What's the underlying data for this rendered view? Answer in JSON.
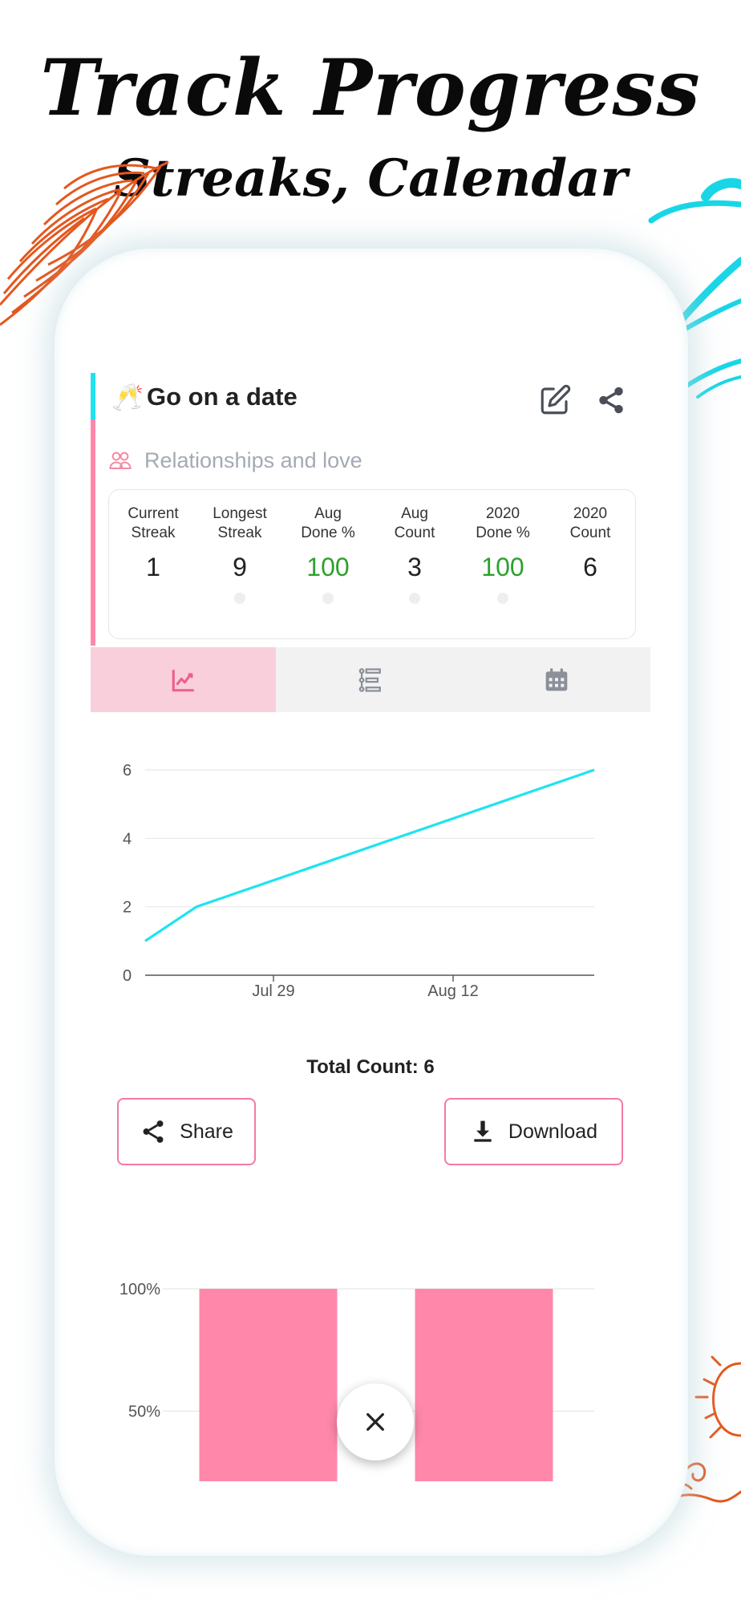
{
  "headline": {
    "title": "Track Progress",
    "subtitle": "Streaks, Calendar"
  },
  "habit": {
    "emoji": "🥂",
    "title": "Go on a date",
    "category": "Relationships and love",
    "accent_colors": {
      "top": "#1fe3f0",
      "bottom": "#ff88aa"
    }
  },
  "actions": {
    "edit_icon": "pencil-square-icon",
    "share_icon": "share-nodes-icon"
  },
  "stats": [
    {
      "line1": "Current",
      "line2": "Streak",
      "value": "1",
      "value_color": "default",
      "mini_icon": "bulb-icon"
    },
    {
      "line1": "Longest",
      "line2": "Streak",
      "value": "9",
      "value_color": "default",
      "mini_icon": "trophy-icon"
    },
    {
      "line1": "Aug",
      "line2": "Done %",
      "value": "100",
      "value_color": "green",
      "mini_icon": "badge-icon"
    },
    {
      "line1": "Aug",
      "line2": "Count",
      "value": "3",
      "value_color": "default",
      "mini_icon": "cloud-icon"
    },
    {
      "line1": "2020",
      "line2": "Done %",
      "value": "100",
      "value_color": "green",
      "mini_icon": "cup-icon"
    },
    {
      "line1": "2020",
      "line2": "Count",
      "value": "6",
      "value_color": "default",
      "mini_icon": "none"
    }
  ],
  "tabs": [
    {
      "icon": "line-chart-icon",
      "active": true
    },
    {
      "icon": "timeline-list-icon",
      "active": false
    },
    {
      "icon": "calendar-icon",
      "active": false
    }
  ],
  "total_count": "Total Count: 6",
  "buttons": {
    "share": "Share",
    "download": "Download"
  },
  "chart_data": [
    {
      "type": "line",
      "title": "",
      "xlabel": "",
      "ylabel": "",
      "x": [
        "Jul 19",
        "Jul 23",
        "Aug 23"
      ],
      "x_tick_labels": [
        "Jul 29",
        "Aug 12"
      ],
      "y_ticks": [
        0,
        2,
        4,
        6
      ],
      "ylim": [
        0,
        6
      ],
      "series": [
        {
          "values": [
            1,
            2,
            6
          ],
          "color": "#1fe3f0"
        }
      ],
      "grid": true
    },
    {
      "type": "bar",
      "title": "",
      "y_tick_labels": [
        "100%",
        "50%"
      ],
      "ylim": [
        0,
        100
      ],
      "categories": [
        "",
        ""
      ],
      "values": [
        100,
        100
      ],
      "color": "#ff88aa",
      "grid": true
    }
  ],
  "fab": {
    "icon": "close-icon"
  },
  "colors": {
    "accent_pink": "#ff88aa",
    "accent_cyan": "#1fe3f0",
    "green": "#2ea02e",
    "button_border": "#f47aa0"
  }
}
